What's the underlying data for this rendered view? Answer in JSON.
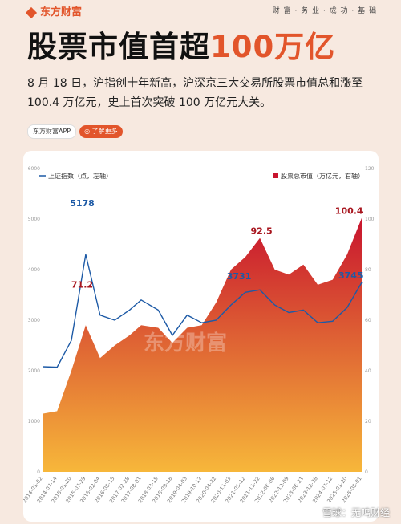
{
  "header": {
    "brand": "东方财富",
    "slogan": "财 富 · 务 业 · 成 功 · 基 础"
  },
  "headline": {
    "part1": "股票市值首超",
    "highlight": "100万亿"
  },
  "description": "8 月 18 日，沪指创十年新高，沪深京三大交易所股票市值总和涨至 100.4 万亿元，史上首次突破 100 万亿元大关。",
  "chips": {
    "app": "东方财富APP",
    "learn": "◎ 了解更多"
  },
  "watermark": "东方财富",
  "footer": "雪球：无鸣财经",
  "colors": {
    "accent": "#e2552b",
    "line": "#1d5aa6",
    "area_top": "#c8142e",
    "area_bottom": "#f7b73a"
  },
  "chart_data": {
    "type": "area",
    "x": [
      "2014-01-02",
      "2014-07-14",
      "2015-01-20",
      "2015-07-29",
      "2016-02-04",
      "2016-08-15",
      "2017-02-28",
      "2017-08-01",
      "2018-03-15",
      "2018-09-18",
      "2019-04-03",
      "2019-10-12",
      "2020-04-22",
      "2020-11-03",
      "2021-05-12",
      "2021-11-22",
      "2022-06-06",
      "2022-12-09",
      "2023-06-21",
      "2023-12-28",
      "2024-07-12",
      "2025-01-20",
      "2025-08-01"
    ],
    "tick_labels": [
      "2014-01-02",
      "2014-07-14",
      "2015-01-20",
      "2015-07-29",
      "2016-02-04",
      "2016-08-15",
      "2017-02-28",
      "2017-08-01",
      "2018-03-15",
      "2018-09-18",
      "2019-04-03",
      "2019-10-12",
      "2020-04-22",
      "2020-11-03",
      "2021-05-12",
      "2021-11-22",
      "2022-06-06",
      "2022-12-09",
      "2023-06-21",
      "2023-12-28",
      "2024-07-12",
      "2025-01-20",
      "2025-08-01"
    ],
    "series": [
      {
        "name": "上证指数（点，左轴）",
        "axis": "left",
        "values": [
          2080,
          2070,
          2600,
          4300,
          3100,
          3000,
          3200,
          3400,
          3200,
          2700,
          3100,
          2950,
          3000,
          3300,
          3550,
          3600,
          3300,
          3150,
          3200,
          2950,
          2980,
          3250,
          3745
        ]
      },
      {
        "name": "股票总市值（万亿元，右轴）",
        "axis": "right",
        "values": [
          23,
          24,
          40,
          58,
          45,
          50,
          54,
          58,
          57,
          51,
          57,
          58,
          67,
          80,
          85,
          92.5,
          80,
          78,
          82,
          74,
          76,
          86,
          100.4
        ]
      }
    ],
    "annotations": [
      {
        "label": "5178",
        "x": "2015-06-12",
        "value": 5178,
        "axis": "left"
      },
      {
        "label": "71.2",
        "x": "2015-06-12",
        "value": 71.2,
        "axis": "right"
      },
      {
        "label": "3731",
        "x": "2021-02-18",
        "value": 3731,
        "axis": "left"
      },
      {
        "label": "92.5",
        "x": "2021-12-13",
        "value": 92.5,
        "axis": "right"
      },
      {
        "label": "100.4",
        "x": "2025-08-18",
        "value": 100.4,
        "axis": "right"
      },
      {
        "label": "3745",
        "x": "2025-08-18",
        "value": 3745,
        "axis": "left"
      }
    ],
    "y_left": {
      "ylim": [
        0,
        6000
      ],
      "ticks": [
        "0",
        "1000",
        "2000",
        "3000",
        "4000",
        "5000",
        "6000"
      ]
    },
    "y_right": {
      "ylim": [
        0,
        120
      ],
      "ticks": [
        "0",
        "20",
        "40",
        "60",
        "80",
        "100",
        "120"
      ]
    },
    "legend_placement": "top",
    "grid": false
  }
}
